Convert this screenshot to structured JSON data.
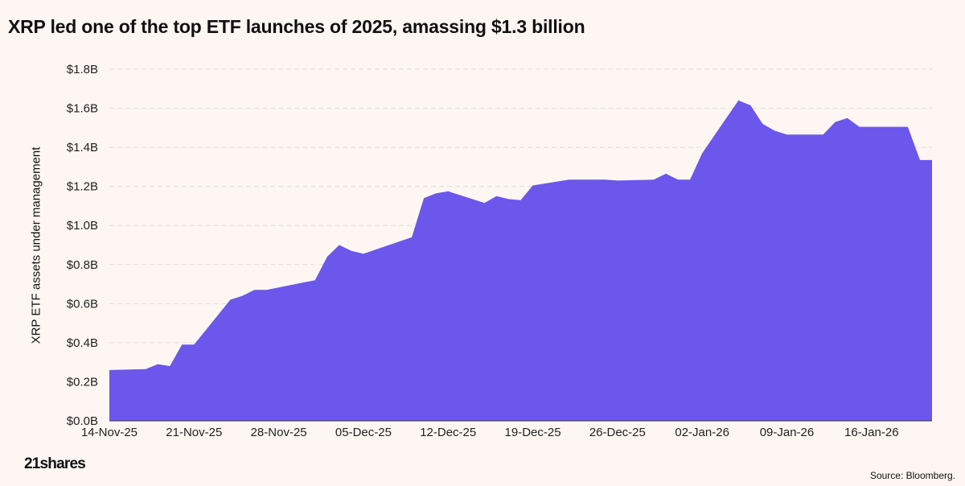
{
  "title": "XRP led one of the top ETF launches of 2025, amassing $1.3 billion",
  "logo": "21shares",
  "source": "Source: Bloomberg.",
  "chart_data": {
    "type": "area",
    "title": "XRP led one of the top ETF launches of 2025, amassing $1.3 billion",
    "xlabel": "",
    "ylabel": "XRP ETF assets under management",
    "ylim": [
      0,
      1.8
    ],
    "yunit": "billion USD",
    "yticks": [
      0,
      0.2,
      0.4,
      0.6,
      0.8,
      1.0,
      1.2,
      1.4,
      1.6,
      1.8
    ],
    "ytick_labels": [
      "$0.0B",
      "$0.2B",
      "$0.4B",
      "$0.6B",
      "$0.8B",
      "$1.0B",
      "$1.2B",
      "$1.4B",
      "$1.6B",
      "$1.8B"
    ],
    "xlim": [
      "2025-11-14",
      "2026-01-21"
    ],
    "xticks": [
      "2025-11-14",
      "2025-11-21",
      "2025-11-28",
      "2025-12-05",
      "2025-12-12",
      "2025-12-19",
      "2025-12-26",
      "2026-01-02",
      "2026-01-09",
      "2026-01-16"
    ],
    "xtick_labels": [
      "14-Nov-25",
      "21-Nov-25",
      "28-Nov-25",
      "05-Dec-25",
      "12-Dec-25",
      "19-Dec-25",
      "26-Dec-25",
      "02-Jan-26",
      "09-Jan-26",
      "16-Jan-26"
    ],
    "grid": "horizontal dashed",
    "color": "#6b57eb",
    "x": [
      "2025-11-14",
      "2025-11-17",
      "2025-11-18",
      "2025-11-19",
      "2025-11-20",
      "2025-11-21",
      "2025-11-24",
      "2025-11-25",
      "2025-11-26",
      "2025-11-27",
      "2025-12-01",
      "2025-12-02",
      "2025-12-03",
      "2025-12-04",
      "2025-12-05",
      "2025-12-09",
      "2025-12-10",
      "2025-12-11",
      "2025-12-12",
      "2025-12-15",
      "2025-12-16",
      "2025-12-17",
      "2025-12-18",
      "2025-12-19",
      "2025-12-22",
      "2025-12-25",
      "2025-12-26",
      "2025-12-29",
      "2025-12-30",
      "2025-12-31",
      "2026-01-01",
      "2026-01-02",
      "2026-01-05",
      "2026-01-06",
      "2026-01-07",
      "2026-01-08",
      "2026-01-09",
      "2026-01-12",
      "2026-01-13",
      "2026-01-14",
      "2026-01-15",
      "2026-01-19",
      "2026-01-20",
      "2026-01-21"
    ],
    "values": [
      0.26,
      0.265,
      0.29,
      0.28,
      0.39,
      0.39,
      0.62,
      0.64,
      0.67,
      0.67,
      0.72,
      0.84,
      0.9,
      0.87,
      0.855,
      0.94,
      1.14,
      1.165,
      1.175,
      1.115,
      1.15,
      1.135,
      1.13,
      1.205,
      1.235,
      1.235,
      1.23,
      1.235,
      1.265,
      1.235,
      1.235,
      1.37,
      1.64,
      1.615,
      1.52,
      1.485,
      1.465,
      1.465,
      1.53,
      1.55,
      1.505,
      1.505,
      1.335,
      1.335
    ]
  }
}
